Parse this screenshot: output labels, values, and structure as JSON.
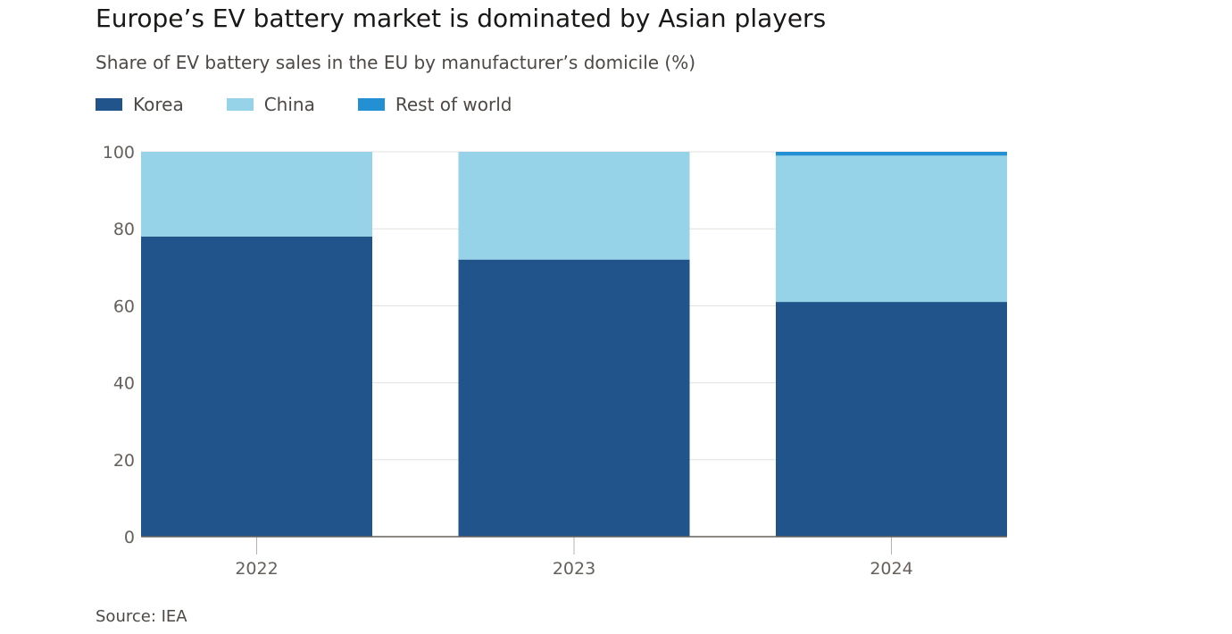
{
  "chart_data": {
    "type": "bar",
    "stacked": true,
    "title": "Europe’s EV battery market is dominated by Asian players",
    "subtitle": "Share of EV battery sales in the EU by manufacturer’s domicile (%)",
    "categories": [
      "2022",
      "2023",
      "2024"
    ],
    "series": [
      {
        "name": "Korea",
        "color": "#20548a",
        "values": [
          78,
          72,
          61
        ]
      },
      {
        "name": "China",
        "color": "#96d3e8",
        "values": [
          22,
          28,
          38
        ]
      },
      {
        "name": "Rest of world",
        "color": "#2390d3",
        "values": [
          0,
          0,
          1
        ]
      }
    ],
    "ylim": [
      0,
      100
    ],
    "yticks": [
      "0",
      "20",
      "40",
      "60",
      "80",
      "100"
    ],
    "grid": true,
    "legend_position": "top-left",
    "source": "Source: IEA"
  }
}
